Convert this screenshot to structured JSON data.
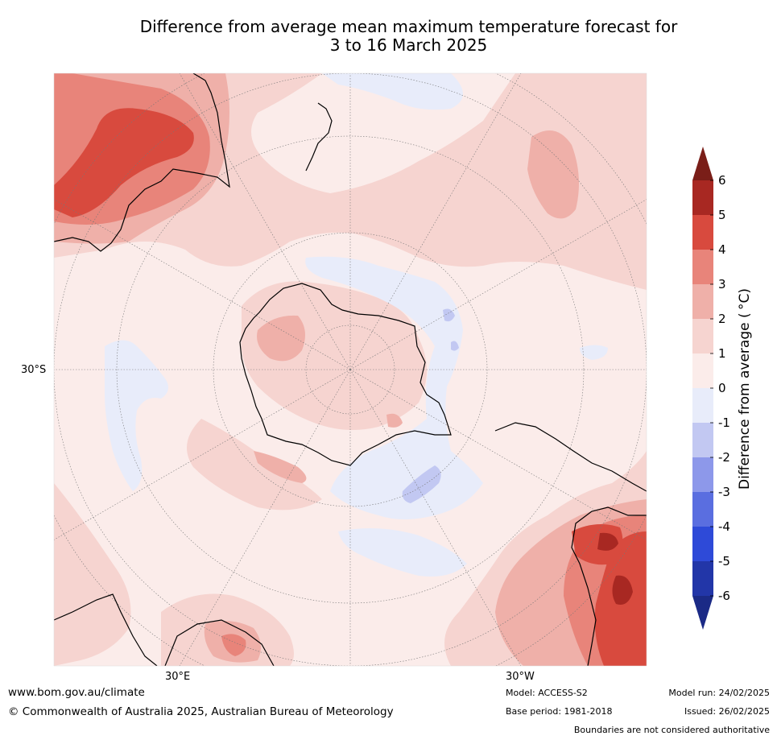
{
  "title": {
    "line1": "Difference from average mean maximum temperature forecast for",
    "line2": "3 to 16 March 2025"
  },
  "map": {
    "lat_label": "30°S",
    "lon_labels": [
      "30°E",
      "30°W"
    ]
  },
  "colorbar": {
    "label": "Difference from average ( °C)",
    "ticks": [
      "6",
      "5",
      "4",
      "3",
      "2",
      "1",
      "0",
      "-1",
      "-2",
      "-3",
      "-4",
      "-5",
      "-6"
    ],
    "colors_warm": [
      "#7a1e18",
      "#a82822",
      "#d84a3e",
      "#e8847a",
      "#efb0a9",
      "#f6d4d0",
      "#fbecea"
    ],
    "colors_cool": [
      "#e8ecfa",
      "#c2c8f2",
      "#8d98ea",
      "#5a6ee0",
      "#2e4ad8",
      "#2236a8",
      "#1b2a86"
    ]
  },
  "footer": {
    "website": "www.bom.gov.au/climate",
    "copyright": "© Commonwealth of Australia 2025, Australian Bureau of Meteorology",
    "model": "Model: ACCESS-S2",
    "base_period": "Base period: 1981-2018",
    "model_run": "Model run: 24/02/2025",
    "issued": "Issued: 26/02/2025",
    "disclaimer": "Boundaries are not considered authoritative"
  }
}
